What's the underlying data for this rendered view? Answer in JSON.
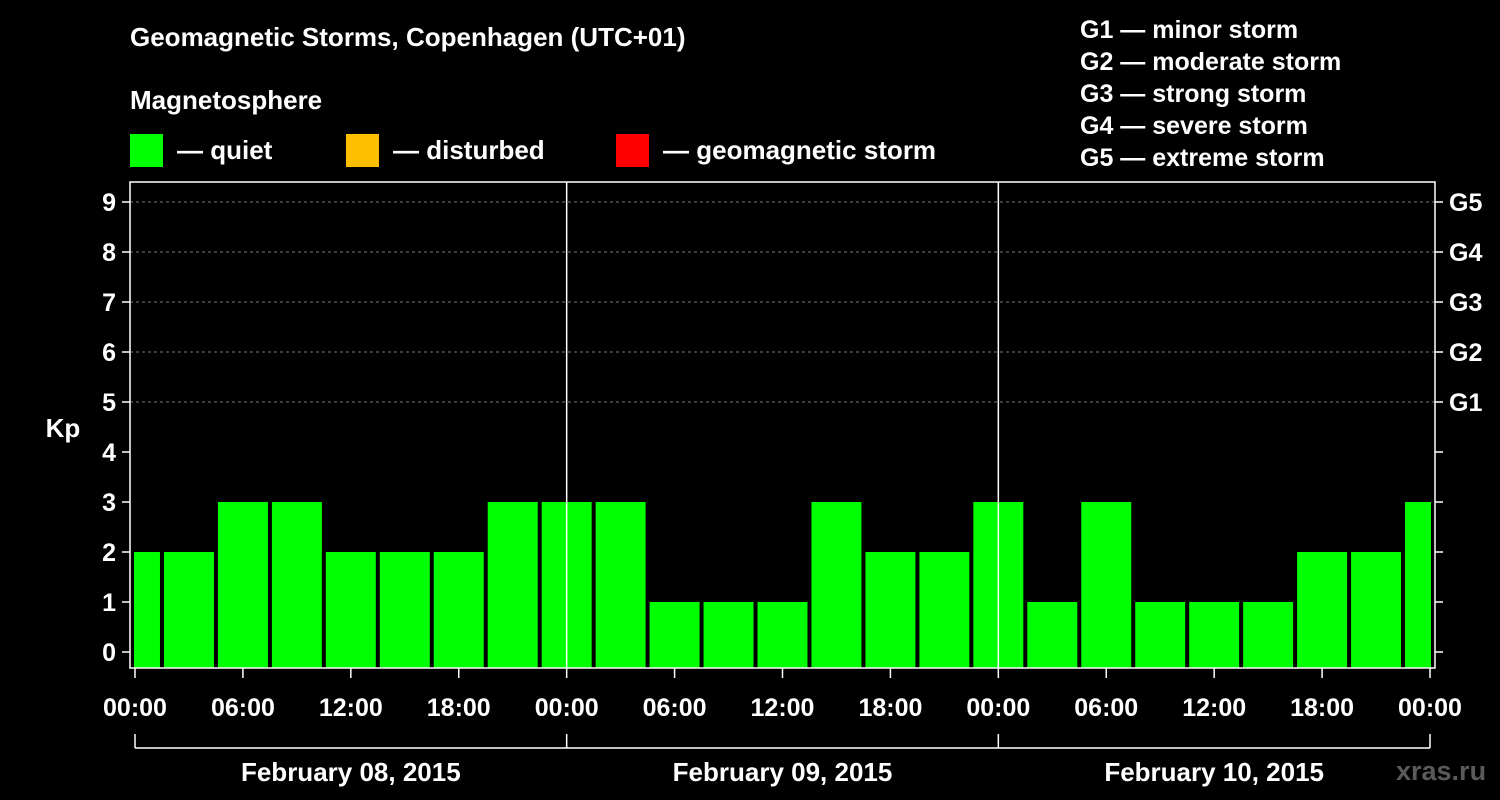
{
  "chart_data": {
    "type": "bar",
    "title": "Geomagnetic Storms, Copenhagen (UTC+01)",
    "subtitle": "Magnetosphere",
    "ylabel": "Kp",
    "ylim": [
      0,
      9
    ],
    "yticks": [
      "0",
      "1",
      "2",
      "3",
      "4",
      "5",
      "6",
      "7",
      "8",
      "9"
    ],
    "right_ticks": [
      {
        "value": 5,
        "label": "G1"
      },
      {
        "value": 6,
        "label": "G2"
      },
      {
        "value": 7,
        "label": "G3"
      },
      {
        "value": 8,
        "label": "G4"
      },
      {
        "value": 9,
        "label": "G5"
      }
    ],
    "x_tick_labels": [
      "00:00",
      "06:00",
      "12:00",
      "18:00",
      "00:00",
      "06:00",
      "12:00",
      "18:00",
      "00:00",
      "06:00",
      "12:00",
      "18:00",
      "00:00"
    ],
    "days": [
      "February 08, 2015",
      "February 09, 2015",
      "February 10, 2015"
    ],
    "interval_hours": 3,
    "values": [
      2,
      2,
      3,
      3,
      2,
      2,
      2,
      3,
      3,
      3,
      1,
      1,
      1,
      3,
      2,
      2,
      3,
      1,
      3,
      1,
      1,
      1,
      2,
      2,
      3
    ],
    "grid": true,
    "legend": [
      {
        "label": "— quiet",
        "color": "#00ff00"
      },
      {
        "label": "— disturbed",
        "color": "#ffbf00"
      },
      {
        "label": "— geomagnetic storm",
        "color": "#ff0000"
      }
    ]
  },
  "scale_legend": [
    "G1 — minor storm",
    "G2 — moderate storm",
    "G3 — strong storm",
    "G4 — severe storm",
    "G5 — extreme storm"
  ],
  "watermark": "xras.ru",
  "colors": {
    "background": "#000000",
    "quiet": "#00ff00",
    "disturbed": "#ffbf00",
    "storm": "#ff0000",
    "grid": "#777777"
  }
}
